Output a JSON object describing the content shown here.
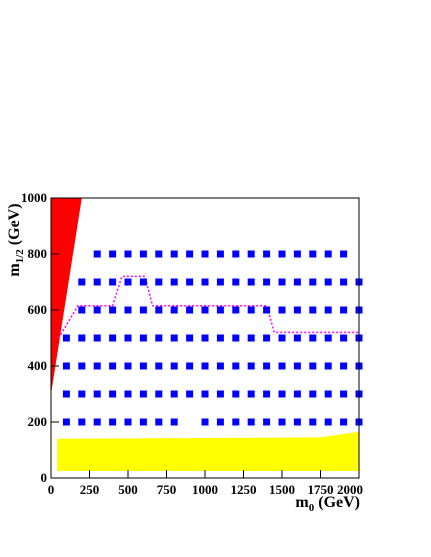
{
  "chart_data": {
    "type": "scatter",
    "x_label": {
      "base": "m",
      "sub": "0",
      "unit": "(GeV)"
    },
    "y_label": {
      "base": "m",
      "sub": "1/2",
      "unit": "(GeV)"
    },
    "xlim": [
      0,
      2000
    ],
    "ylim": [
      0,
      1000
    ],
    "xticks": [
      0,
      250,
      500,
      750,
      1000,
      1250,
      1500,
      1750,
      2000
    ],
    "yticks": [
      0,
      200,
      400,
      600,
      800,
      1000
    ],
    "regions": [
      {
        "color": "#ff0000",
        "x": [
          0,
          0,
          200
        ],
        "y": [
          300,
          1000,
          1000
        ]
      },
      {
        "color": "#ffff00",
        "x": [
          40,
          40,
          1750,
          2000,
          2000
        ],
        "y": [
          25,
          140,
          145,
          165,
          25
        ]
      }
    ],
    "lines": [
      {
        "color": "#ff00ff",
        "x": [
          50,
          175,
          400,
          460,
          610,
          660,
          1400,
          1450,
          2000
        ],
        "y": [
          500,
          615,
          615,
          720,
          720,
          615,
          615,
          520,
          520
        ]
      }
    ],
    "series": [
      {
        "color": "#0000ff",
        "x": [
          300,
          400,
          500,
          600,
          700,
          800,
          900,
          1000,
          1100,
          1200,
          1300,
          1400,
          1500,
          1600,
          1700,
          1800,
          1900,
          200,
          300,
          400,
          500,
          600,
          700,
          800,
          900,
          1000,
          1100,
          1200,
          1300,
          1400,
          1500,
          1600,
          1700,
          1800,
          1900,
          2000,
          200,
          300,
          400,
          500,
          600,
          700,
          800,
          900,
          1000,
          1100,
          1200,
          1300,
          1400,
          1500,
          1600,
          1700,
          1800,
          1900,
          2000,
          100,
          200,
          300,
          400,
          500,
          600,
          700,
          800,
          900,
          1000,
          1100,
          1200,
          1300,
          1400,
          1500,
          1600,
          1700,
          1800,
          1900,
          2000,
          100,
          200,
          300,
          400,
          500,
          600,
          700,
          800,
          900,
          1000,
          1100,
          1200,
          1300,
          1400,
          1500,
          1600,
          1700,
          1800,
          1900,
          2000,
          100,
          200,
          300,
          400,
          500,
          600,
          700,
          800,
          900,
          1000,
          1100,
          1200,
          1300,
          1400,
          1500,
          1600,
          1700,
          1800,
          1900,
          2000,
          100,
          200,
          300,
          400,
          500,
          600,
          700,
          800,
          1000,
          1100,
          1200,
          1300,
          1400,
          1500,
          1600,
          1700,
          1800,
          1900,
          2000
        ],
        "y": [
          800,
          800,
          800,
          800,
          800,
          800,
          800,
          800,
          800,
          800,
          800,
          800,
          800,
          800,
          800,
          800,
          800,
          700,
          700,
          700,
          700,
          700,
          700,
          700,
          700,
          700,
          700,
          700,
          700,
          700,
          700,
          700,
          700,
          700,
          700,
          700,
          600,
          600,
          600,
          600,
          600,
          600,
          600,
          600,
          600,
          600,
          600,
          600,
          600,
          600,
          600,
          600,
          600,
          600,
          600,
          500,
          500,
          500,
          500,
          500,
          500,
          500,
          500,
          500,
          500,
          500,
          500,
          500,
          500,
          500,
          500,
          500,
          500,
          500,
          500,
          400,
          400,
          400,
          400,
          400,
          400,
          400,
          400,
          400,
          400,
          400,
          400,
          400,
          400,
          400,
          400,
          400,
          400,
          400,
          400,
          300,
          300,
          300,
          300,
          300,
          300,
          300,
          300,
          300,
          300,
          300,
          300,
          300,
          300,
          300,
          300,
          300,
          300,
          300,
          300,
          200,
          200,
          200,
          200,
          200,
          200,
          200,
          200,
          200,
          200,
          200,
          200,
          200,
          200,
          200,
          200,
          200,
          200,
          200
        ]
      }
    ]
  }
}
